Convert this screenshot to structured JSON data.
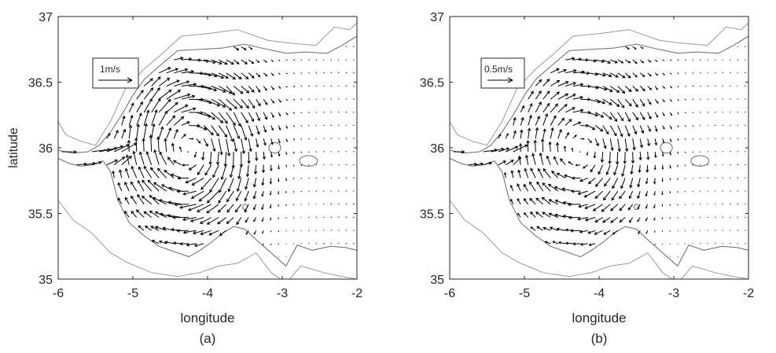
{
  "figure": {
    "ylabel": "latitude",
    "panels": [
      {
        "caption": "(a)",
        "xlabel": "longitude",
        "scale_label": "1m/s"
      },
      {
        "caption": "(b)",
        "xlabel": "longitude",
        "scale_label": "0.5m/s"
      }
    ]
  },
  "chart_data": [
    {
      "type": "quiver",
      "caption": "(a)",
      "xlabel": "longitude",
      "ylabel": "latitude",
      "xlim": [
        -6,
        -2
      ],
      "ylim": [
        35,
        37
      ],
      "xticks": [
        -6,
        -5,
        -4,
        -3,
        -2
      ],
      "yticks": [
        35,
        35.5,
        36,
        36.5,
        37
      ],
      "reference_vector": {
        "label": "1m/s",
        "speed": 1.0
      },
      "flow": {
        "inflow_strait": {
          "lon": -5.6,
          "lat": 35.95,
          "speed": 1.0
        },
        "gyre_center": {
          "lon": -4.25,
          "lat": 36.0,
          "rotation": "anticyclonic",
          "max_speed": 0.8
        },
        "eastern_basin_speed": 0.05
      },
      "contour_color": "#9a9a9a",
      "arrow_color": "#000000"
    },
    {
      "type": "quiver",
      "caption": "(b)",
      "xlabel": "longitude",
      "ylabel": "latitude",
      "xlim": [
        -6,
        -2
      ],
      "ylim": [
        35,
        37
      ],
      "xticks": [
        -6,
        -5,
        -4,
        -3,
        -2
      ],
      "yticks": [
        35,
        35.5,
        36,
        36.5,
        37
      ],
      "reference_vector": {
        "label": "0.5m/s",
        "speed": 0.5
      },
      "flow": {
        "inflow_strait": {
          "lon": -5.6,
          "lat": 35.95,
          "speed": 0.5
        },
        "gyre_center": {
          "lon": -4.25,
          "lat": 36.0,
          "rotation": "anticyclonic",
          "max_speed": 0.4
        },
        "eastern_basin_speed": 0.03
      },
      "contour_color": "#9a9a9a",
      "arrow_color": "#000000"
    }
  ]
}
